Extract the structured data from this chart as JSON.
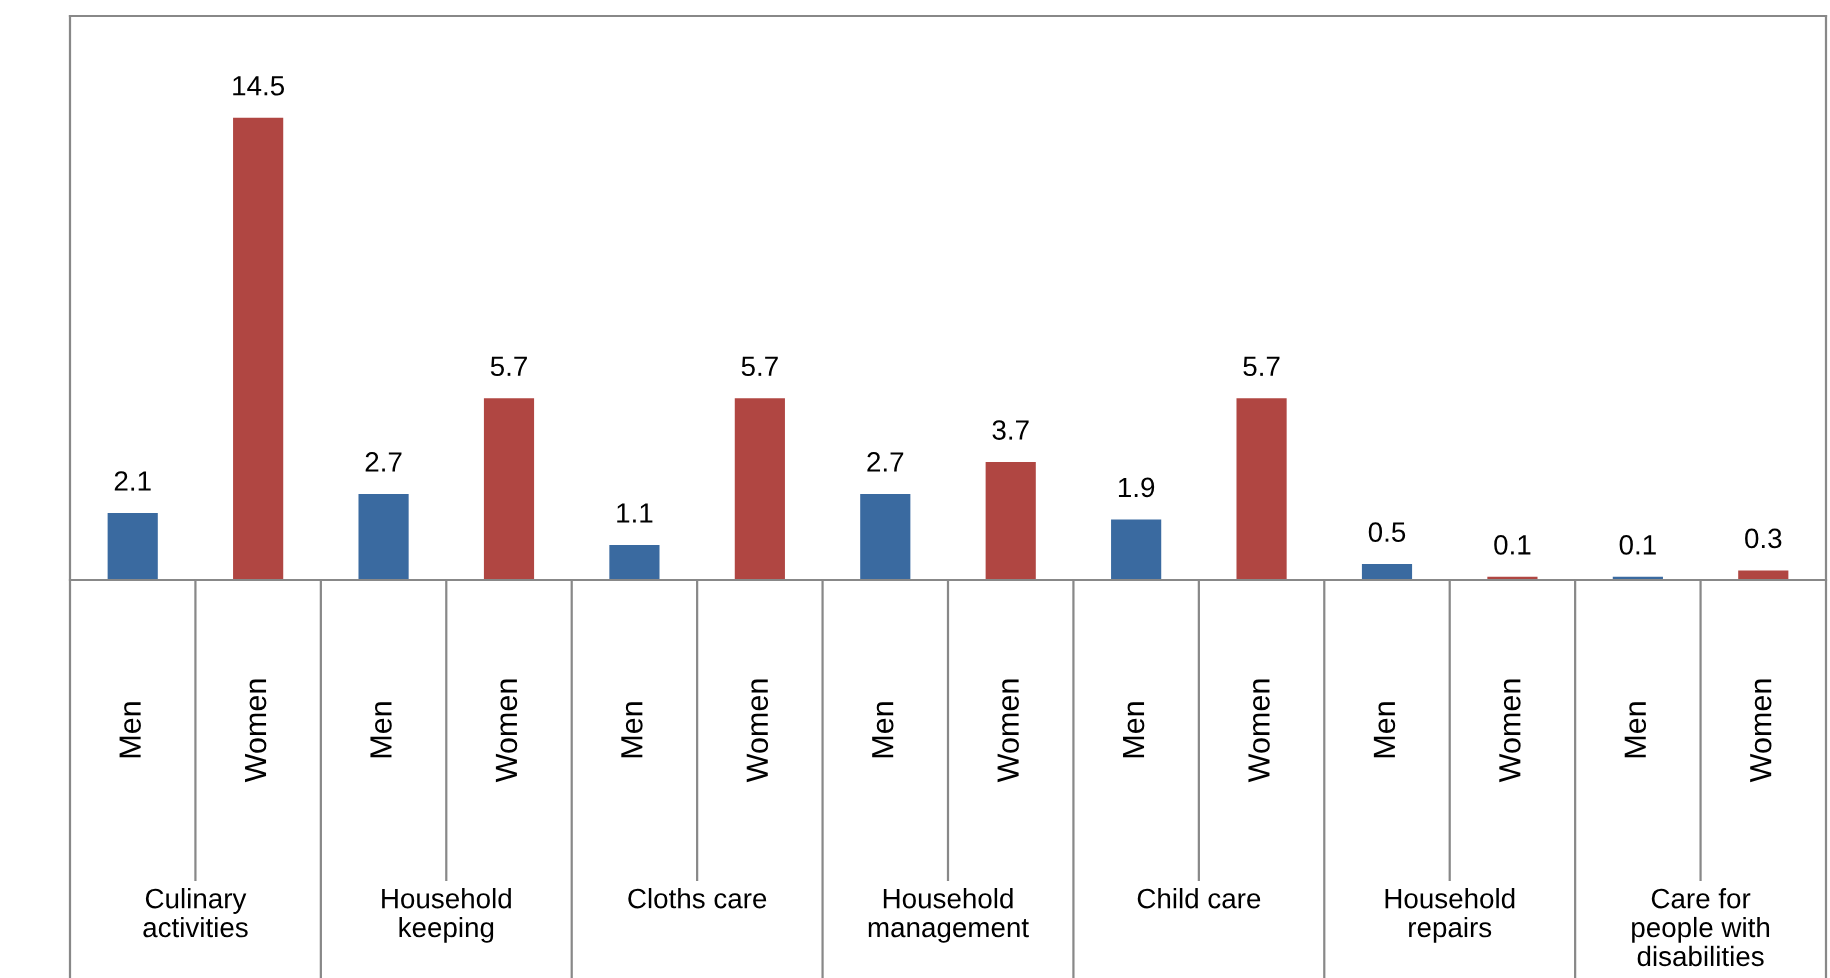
{
  "chart_data": {
    "type": "bar",
    "categories": [
      "Culinary\nactivities",
      "Household\nkeeping",
      "Cloths care",
      "Household\nmanagement",
      "Child care",
      "Household\nrepairs",
      "Care for\npeople with\ndisabilities"
    ],
    "series": [
      {
        "name": "Men",
        "color": "#3a6aa0",
        "values": [
          2.1,
          2.7,
          1.1,
          2.7,
          1.9,
          0.5,
          0.1
        ]
      },
      {
        "name": "Women",
        "color": "#b04642",
        "values": [
          14.5,
          5.7,
          5.7,
          3.7,
          5.7,
          0.1,
          0.3
        ]
      }
    ],
    "data_labels": true,
    "legend": false
  }
}
